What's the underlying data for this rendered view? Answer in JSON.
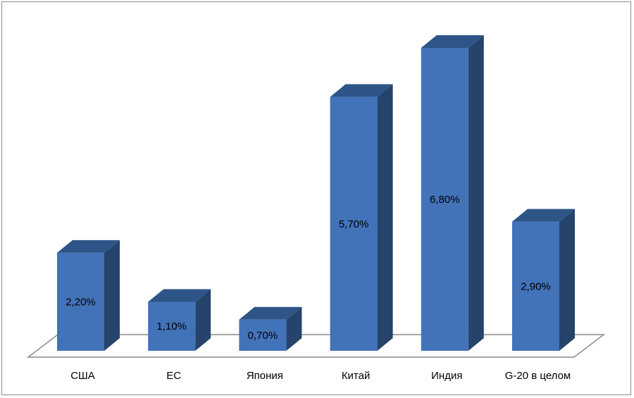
{
  "chart_data": {
    "type": "bar",
    "style": "3d-column",
    "categories": [
      "США",
      "ЕС",
      "Япония",
      "Китай",
      "Индия",
      "G-20 в целом"
    ],
    "values": [
      2.2,
      1.1,
      0.7,
      5.7,
      6.8,
      2.9
    ],
    "value_labels": [
      "2,20%",
      "1,10%",
      "0,70%",
      "5,70%",
      "6,80%",
      "2,90%"
    ],
    "title": "",
    "xlabel": "",
    "ylabel": "",
    "ylim": [
      0,
      6.8
    ],
    "grid": false,
    "legend": "none",
    "colors": {
      "front": "#4272B8",
      "top": "#2E5587",
      "side": "#26436B",
      "floor_stroke": "#8c8c8c"
    }
  }
}
